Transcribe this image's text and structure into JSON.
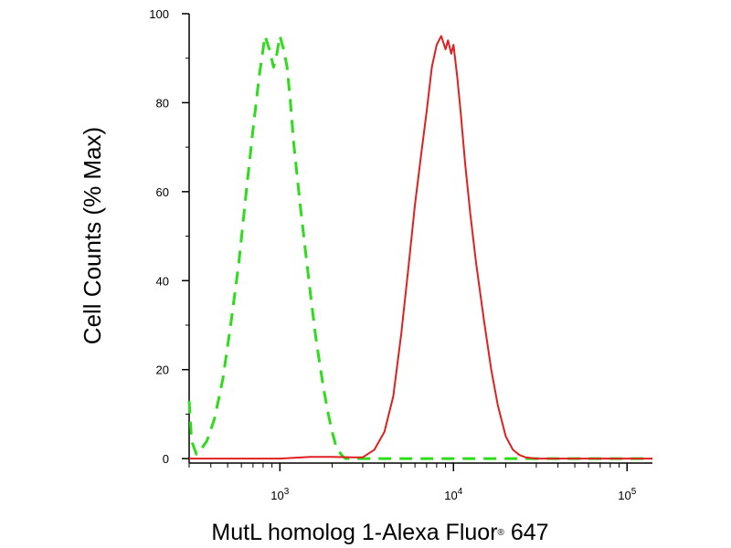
{
  "chart_data": {
    "type": "line",
    "xlabel": "MutL homolog 1-Alexa Fluor",
    "xlabel_mark": "®",
    "xlabel_suffix": " 647",
    "ylabel": "Cell Counts (% Max)",
    "x_scale": "log",
    "xlim": [
      300,
      140000
    ],
    "ylim": [
      -1,
      100
    ],
    "x_ticks": [
      {
        "value": 1000,
        "base": "10",
        "exp": "3"
      },
      {
        "value": 10000,
        "base": "10",
        "exp": "4"
      },
      {
        "value": 100000,
        "base": "10",
        "exp": "5"
      }
    ],
    "y_ticks": [
      0,
      20,
      40,
      60,
      80,
      100
    ],
    "y_tick_labels": [
      "0",
      "20",
      "40",
      "60",
      "80",
      "100"
    ],
    "grid": false,
    "series": [
      {
        "color": "#2edc1c",
        "style": "dashed",
        "x": [
          300,
          310,
          330,
          350,
          380,
          420,
          470,
          520,
          580,
          640,
          700,
          760,
          820,
          870,
          920,
          960,
          1000,
          1050,
          1100,
          1150,
          1200,
          1300,
          1400,
          1500,
          1600,
          1700,
          1800,
          1900,
          2000,
          2100,
          2200,
          2300,
          2400,
          2600,
          3000,
          4000,
          7000,
          20000,
          60000,
          140000
        ],
        "y": [
          13,
          4,
          1,
          2,
          4,
          9,
          18,
          30,
          44,
          60,
          74,
          86,
          95,
          92,
          88,
          91,
          95,
          92,
          88,
          80,
          71,
          58,
          47,
          37,
          28,
          21,
          15,
          10,
          6,
          3,
          1.5,
          0.5,
          0,
          0,
          0,
          0,
          0,
          0,
          0,
          0
        ]
      },
      {
        "color": "#e02020",
        "style": "solid",
        "x": [
          300,
          600,
          1000,
          1500,
          2000,
          2600,
          3000,
          3500,
          4000,
          4500,
          5000,
          5500,
          6000,
          6500,
          7000,
          7500,
          8000,
          8500,
          9000,
          9300,
          9700,
          10000,
          10500,
          11000,
          11700,
          12500,
          13500,
          15000,
          16500,
          18000,
          20000,
          22000,
          24000,
          26000,
          30000,
          40000,
          60000,
          100000,
          140000
        ],
        "y": [
          0,
          0,
          0,
          0.4,
          0.4,
          0.3,
          0.3,
          2,
          6,
          14,
          28,
          43,
          57,
          68,
          78,
          88,
          93,
          95,
          92,
          94,
          91,
          93,
          86,
          78,
          66,
          55,
          44,
          31,
          20,
          12,
          5,
          2,
          0.8,
          0.3,
          0,
          0,
          0,
          0,
          0
        ]
      }
    ]
  }
}
